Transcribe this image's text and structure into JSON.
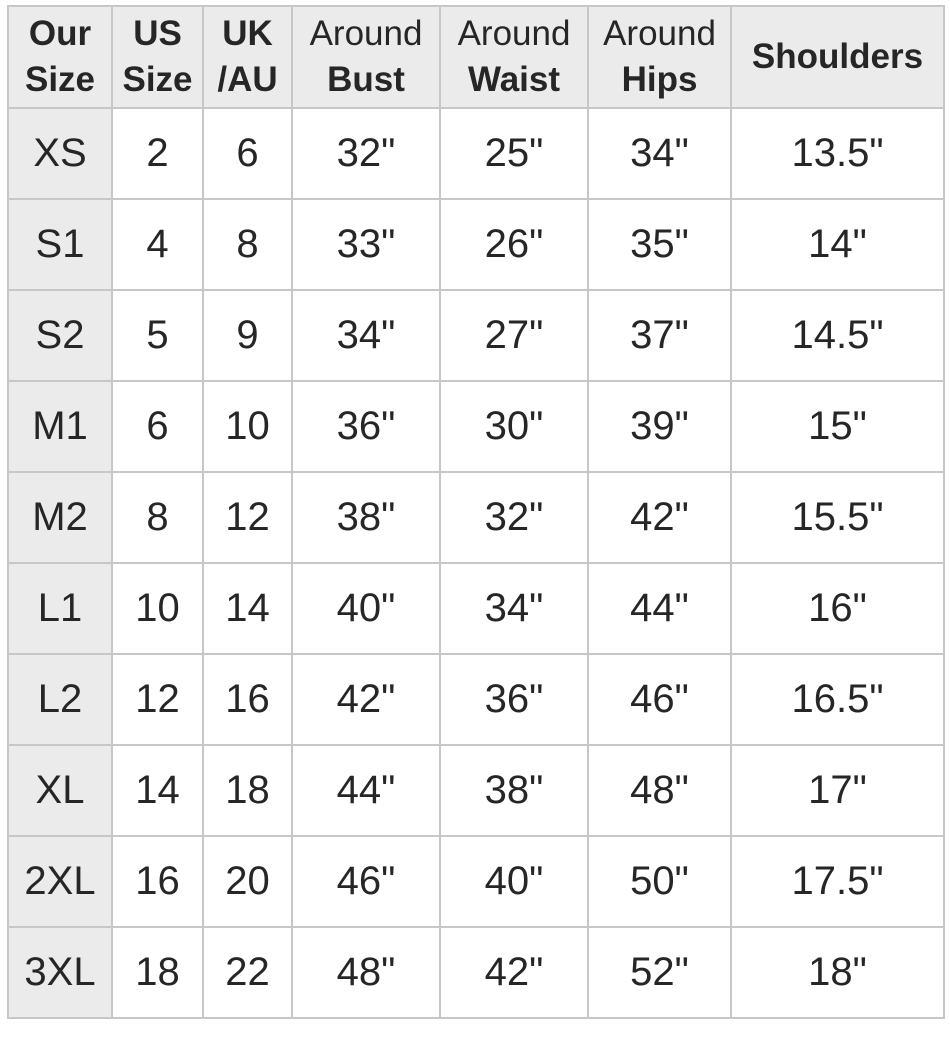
{
  "chart_data": {
    "type": "table",
    "description": "Clothing size conversion and body measurement chart",
    "columns": [
      {
        "line1": "Our",
        "line2": "Size"
      },
      {
        "line1": "US",
        "line2": "Size"
      },
      {
        "line1": "UK",
        "line2": "/AU"
      },
      {
        "line1": "Around",
        "line2": "Bust"
      },
      {
        "line1": "Around",
        "line2": "Waist"
      },
      {
        "line1": "Around",
        "line2": "Hips"
      },
      {
        "line1": "Shoulders",
        "line2": ""
      }
    ],
    "rows": [
      [
        "XS",
        "2",
        "6",
        "32\"",
        "25\"",
        "34\"",
        "13.5\""
      ],
      [
        "S1",
        "4",
        "8",
        "33\"",
        "26\"",
        "35\"",
        "14\""
      ],
      [
        "S2",
        "5",
        "9",
        "34\"",
        "27\"",
        "37\"",
        "14.5\""
      ],
      [
        "M1",
        "6",
        "10",
        "36\"",
        "30\"",
        "39\"",
        "15\""
      ],
      [
        "M2",
        "8",
        "12",
        "38\"",
        "32\"",
        "42\"",
        "15.5\""
      ],
      [
        "L1",
        "10",
        "14",
        "40\"",
        "34\"",
        "44\"",
        "16\""
      ],
      [
        "L2",
        "12",
        "16",
        "42\"",
        "36\"",
        "46\"",
        "16.5\""
      ],
      [
        "XL",
        "14",
        "18",
        "44\"",
        "38\"",
        "48\"",
        "17\""
      ],
      [
        "2XL",
        "16",
        "20",
        "46\"",
        "40\"",
        "50\"",
        "17.5\""
      ],
      [
        "3XL",
        "18",
        "22",
        "48\"",
        "42\"",
        "52\"",
        "18\""
      ]
    ]
  },
  "colors": {
    "header_bg": "#ebebeb",
    "row_label_bg": "#ebebeb",
    "cell_bg": "#ffffff",
    "border": "#c7c7c7",
    "text": "#262626"
  }
}
